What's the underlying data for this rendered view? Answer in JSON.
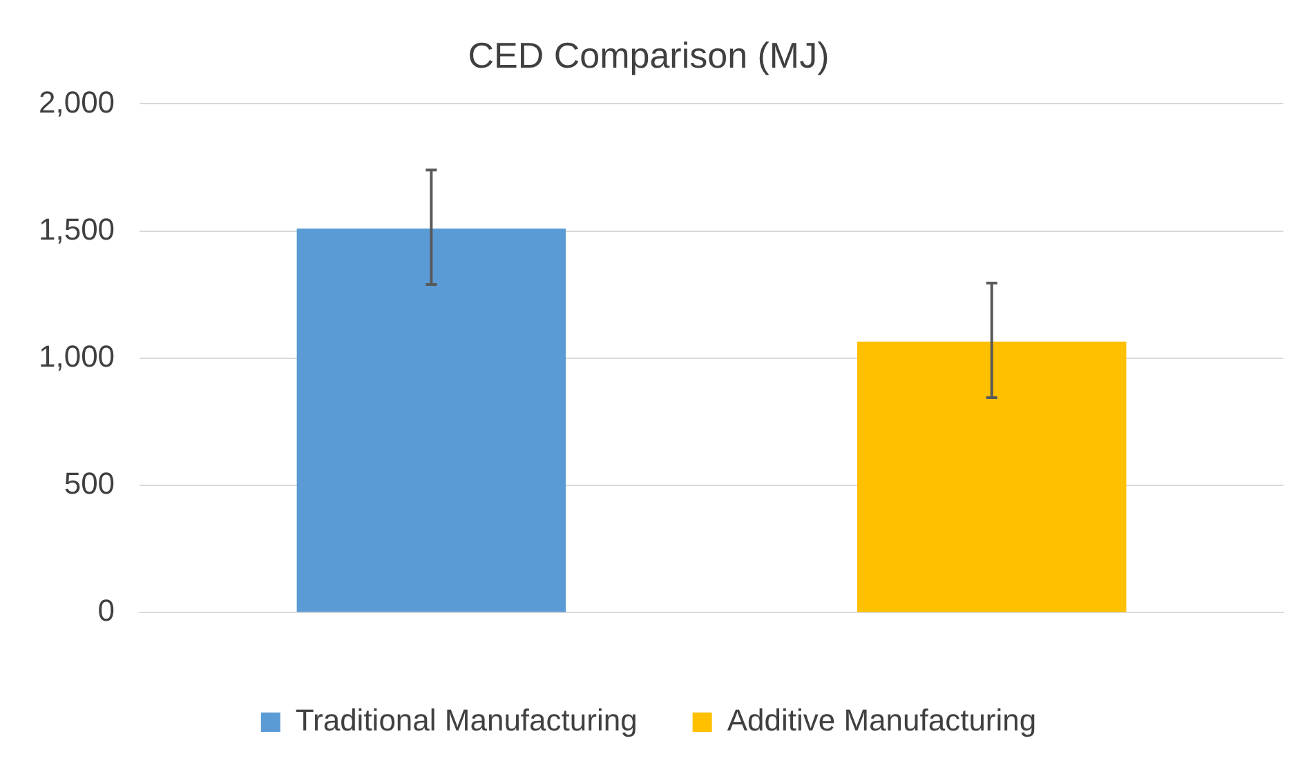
{
  "chart_data": {
    "type": "bar",
    "title": "CED Comparison (MJ)",
    "categories": [
      null
    ],
    "series": [
      {
        "name": "Traditional Manufacturing",
        "color": "#5b9bd5",
        "values": [
          1510
        ],
        "errors": [
          [
            1290,
            1740
          ]
        ]
      },
      {
        "name": "Additive Manufacturing",
        "color": "#ffc000",
        "values": [
          1065
        ],
        "errors": [
          [
            845,
            1295
          ]
        ]
      }
    ],
    "ylim": [
      0,
      2000
    ],
    "yticks": [
      {
        "value": 0,
        "label": "0"
      },
      {
        "value": 500,
        "label": "500"
      },
      {
        "value": 1000,
        "label": "1,000"
      },
      {
        "value": 1500,
        "label": "1,500"
      },
      {
        "value": 2000,
        "label": "2,000"
      }
    ],
    "grid": "y",
    "legend": "bottom"
  }
}
